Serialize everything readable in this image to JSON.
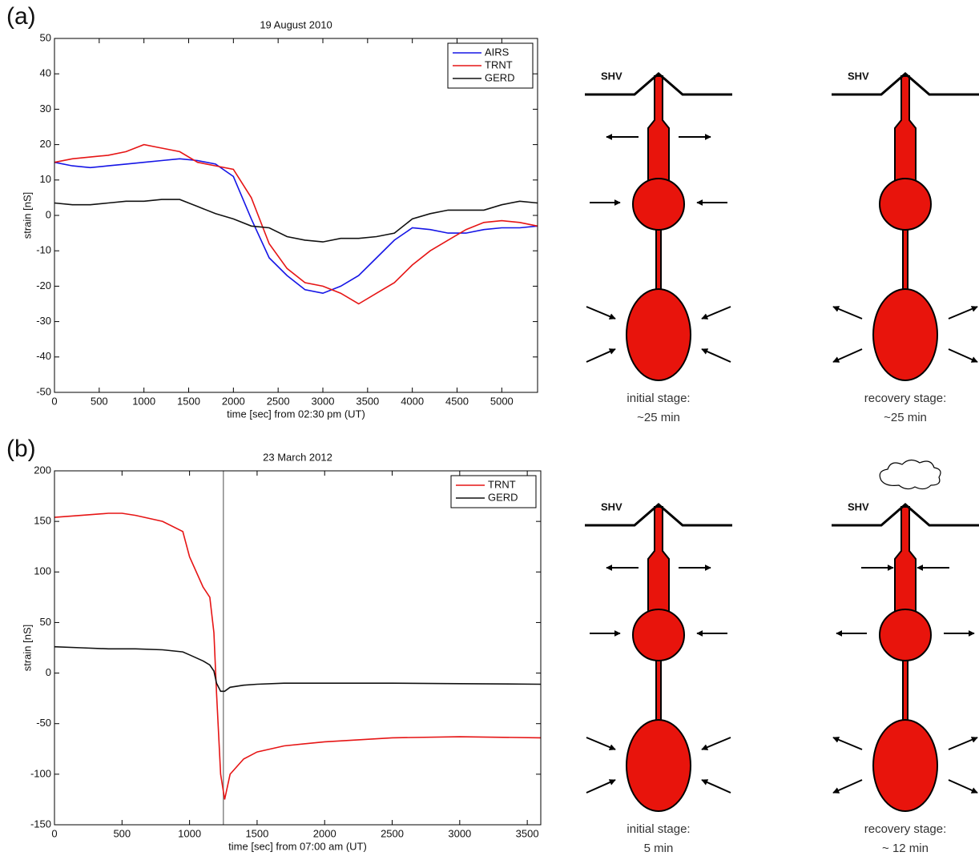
{
  "panel_labels": [
    "(a)",
    "(b)"
  ],
  "chart_data": [
    {
      "type": "line",
      "title": "19 August 2010",
      "xlabel": "time [sec] from 02:30 pm (UT)",
      "ylabel": "strain [nS]",
      "x": [
        0,
        200,
        400,
        600,
        800,
        1000,
        1200,
        1400,
        1600,
        1800,
        2000,
        2200,
        2400,
        2600,
        2800,
        3000,
        3200,
        3400,
        3600,
        3800,
        4000,
        4200,
        4400,
        4600,
        4800,
        5000,
        5200,
        5400
      ],
      "series": [
        {
          "name": "AIRS",
          "color": "#1515e6",
          "values": [
            15,
            14,
            13.5,
            14,
            14.5,
            15,
            15.5,
            16,
            15.5,
            14.5,
            11,
            -1,
            -12,
            -17,
            -21,
            -22,
            -20,
            -17,
            -12,
            -7,
            -3.5,
            -4,
            -5,
            -5,
            -4,
            -3.5,
            -3.5,
            -3
          ]
        },
        {
          "name": "TRNT",
          "color": "#e61515",
          "values": [
            15,
            16,
            16.5,
            17,
            18,
            20,
            19,
            18,
            15,
            14,
            13,
            5,
            -8,
            -15,
            -19,
            -20,
            -22,
            -25,
            -22,
            -19,
            -14,
            -10,
            -7,
            -4,
            -2,
            -1.5,
            -2,
            -3
          ]
        },
        {
          "name": "GERD",
          "color": "#111111",
          "values": [
            3.5,
            3,
            3,
            3.5,
            4,
            4,
            4.5,
            4.5,
            2.5,
            0.5,
            -1,
            -3,
            -3.5,
            -6,
            -7,
            -7.5,
            -6.5,
            -6.5,
            -6,
            -5,
            -1,
            0.5,
            1.5,
            1.5,
            1.5,
            3,
            4,
            3.5
          ]
        }
      ],
      "xlim": [
        0,
        5400
      ],
      "xticks": [
        0,
        500,
        1000,
        1500,
        2000,
        2500,
        3000,
        3500,
        4000,
        4500,
        5000
      ],
      "ylim": [
        -50,
        50
      ],
      "yticks": [
        -50,
        -40,
        -30,
        -20,
        -10,
        0,
        10,
        20,
        30,
        40,
        50
      ],
      "legend": "upper right"
    },
    {
      "type": "line",
      "title": "23 March 2012",
      "xlabel": "time [sec] from 07:00 am (UT)",
      "ylabel": "strain [nS]",
      "x": [
        0,
        200,
        400,
        500,
        600,
        800,
        950,
        1000,
        1100,
        1150,
        1180,
        1200,
        1230,
        1260,
        1300,
        1400,
        1500,
        1700,
        2000,
        2500,
        3000,
        3600
      ],
      "series": [
        {
          "name": "TRNT",
          "color": "#e61515",
          "values": [
            154,
            156,
            158,
            158,
            156,
            150,
            140,
            115,
            85,
            75,
            40,
            -20,
            -100,
            -125,
            -100,
            -85,
            -78,
            -72,
            -68,
            -64,
            -63,
            -64
          ]
        },
        {
          "name": "GERD",
          "color": "#111111",
          "values": [
            26,
            25,
            24,
            24,
            24,
            23,
            21,
            18,
            12,
            8,
            2,
            -10,
            -18,
            -18,
            -14,
            -12,
            -11,
            -10,
            -10,
            -10,
            -10.5,
            -11
          ]
        }
      ],
      "xlim": [
        0,
        3600
      ],
      "xticks": [
        0,
        500,
        1000,
        1500,
        2000,
        2500,
        3000,
        3500
      ],
      "ylim": [
        -150,
        200
      ],
      "yticks": [
        -150,
        -100,
        -50,
        0,
        50,
        100,
        150,
        200
      ],
      "legend": "upper right",
      "vline": 1250,
      "vline_color": "#888888"
    }
  ],
  "diagrams": [
    {
      "label": "SHV",
      "caption": [
        "initial stage:",
        "~25 min"
      ]
    },
    {
      "label": "SHV",
      "caption": [
        "recovery stage:",
        "~25 min"
      ]
    },
    {
      "label": "SHV",
      "caption": [
        "initial stage:",
        "5 min"
      ]
    },
    {
      "label": "SHV",
      "caption": [
        "recovery stage:",
        "~ 12 min"
      ]
    }
  ]
}
